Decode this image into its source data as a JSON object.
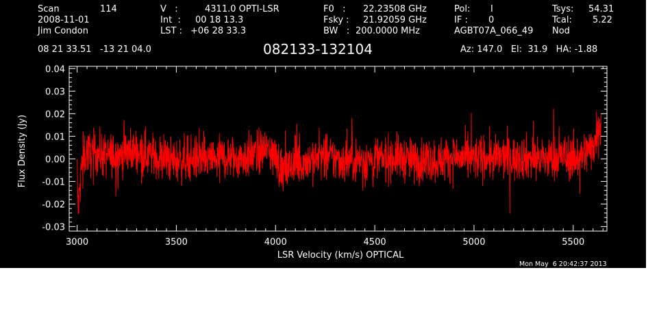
{
  "header": {
    "scan_label": "Scan",
    "scan_value": "114",
    "date": "2008-11-01",
    "observer": "Jim Condon",
    "v_label": "V   :",
    "v_value": "4311.0 OPTI-LSR",
    "int_label": "Int  :",
    "int_value": "00 18 13.3",
    "lst_label": "LST :",
    "lst_value": "+06 28 33.3",
    "f0_label": "F0   :",
    "f0_value": "22.23508 GHz",
    "fsky_label": "Fsky :",
    "fsky_value": "21.92059 GHz",
    "bw_label": "BW   :",
    "bw_value": "200.0000 MHz",
    "pol_label": "Pol:",
    "pol_value": "I",
    "if_label": "IF :",
    "if_value": "0",
    "project": "AGBT07A_066_49",
    "tsys_label": "Tsys:",
    "tsys_value": "54.31",
    "tcal_label": "Tcal:",
    "tcal_value": "5.22",
    "mode": "Nod",
    "coords": "08 21 33.51   -13 21 04.0",
    "source": "082133-132104",
    "az_el_ha": "Az: 147.0   El:  31.9   HA: -1.88",
    "timestamp": "Mon May  6 20:42:37 2013"
  },
  "colors": {
    "background": "#000000",
    "axes": "#ffffff",
    "trace": "#ff0000"
  },
  "chart_data": {
    "type": "line",
    "title": "",
    "xlabel": "LSR Velocity (km/s) OPTICAL",
    "ylabel": "Flux Density (Jy)",
    "xlim": [
      2960,
      5670
    ],
    "ylim": [
      -0.032,
      0.041
    ],
    "xticks": [
      3000,
      3500,
      4000,
      4500,
      5000,
      5500
    ],
    "xtick_labels": [
      "3000",
      "3500",
      "4000",
      "4500",
      "5000",
      "5500"
    ],
    "yticks": [
      -0.03,
      -0.02,
      -0.01,
      0.0,
      0.01,
      0.02,
      0.03,
      0.04
    ],
    "ytick_labels": [
      "-0.03",
      "-0.02",
      "-0.01",
      "0.00",
      "0.01",
      "0.02",
      "0.03",
      "0.04"
    ],
    "grid": false,
    "series": [
      {
        "color": "#ff0000",
        "x": [
          3000,
          3005,
          3010,
          3020,
          3030,
          3050,
          3075,
          3100,
          3150,
          3200,
          3250,
          3300,
          3350,
          3400,
          3450,
          3500,
          3550,
          3600,
          3650,
          3700,
          3750,
          3800,
          3850,
          3900,
          3950,
          3975,
          4000,
          4025,
          4050,
          4075,
          4100,
          4150,
          4200,
          4250,
          4300,
          4350,
          4400,
          4450,
          4500,
          4550,
          4600,
          4650,
          4700,
          4750,
          4800,
          4850,
          4900,
          4950,
          5000,
          5050,
          5100,
          5150,
          5200,
          5250,
          5300,
          5350,
          5400,
          5450,
          5500,
          5550,
          5580,
          5600,
          5610,
          5620,
          5630,
          5640
        ],
        "y": [
          -0.005,
          -0.022,
          -0.018,
          -0.006,
          0.001,
          0.003,
          0.002,
          0.003,
          0.001,
          0.002,
          0.003,
          0.004,
          0.002,
          0.001,
          0.0,
          -0.001,
          0.0,
          0.0,
          -0.001,
          0.0,
          0.001,
          0.0,
          0.001,
          0.002,
          0.004,
          0.003,
          0.001,
          -0.004,
          -0.006,
          -0.003,
          -0.002,
          -0.001,
          0.0,
          0.001,
          0.0,
          -0.001,
          0.0,
          -0.001,
          0.0,
          0.0,
          0.001,
          0.0,
          -0.001,
          0.0,
          -0.001,
          0.0,
          0.001,
          0.0,
          0.0,
          0.001,
          0.0,
          0.001,
          0.0,
          0.001,
          0.0,
          0.0,
          0.0,
          0.001,
          0.0,
          0.002,
          0.004,
          0.006,
          0.008,
          0.012,
          0.015,
          0.018
        ],
        "noise_rms": 0.005
      }
    ]
  }
}
